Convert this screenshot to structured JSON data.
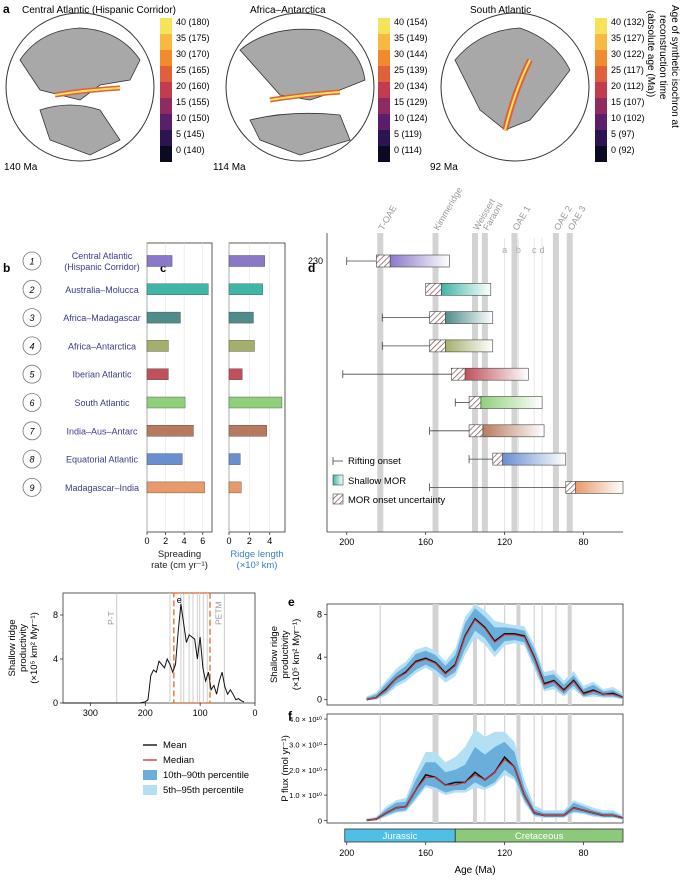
{
  "panel_letters": {
    "a": "a",
    "b": "b",
    "c": "c",
    "d": "d",
    "e": "e",
    "f": "f"
  },
  "panel_a": {
    "globes": [
      {
        "title": "Central Atlantic (Hispanic Corridor)",
        "age": "140 Ma",
        "scale": [
          "40 (180)",
          "35 (175)",
          "30 (170)",
          "25 (165)",
          "20 (160)",
          "15 (155)",
          "10 (150)",
          "5 (145)",
          "0 (140)"
        ]
      },
      {
        "title": "Africa–Antarctica",
        "age": "114 Ma",
        "scale": [
          "40 (154)",
          "35 (149)",
          "30 (144)",
          "25 (139)",
          "20 (134)",
          "15 (129)",
          "10 (124)",
          "5 (119)",
          "0 (114)"
        ]
      },
      {
        "title": "South Atlantic",
        "age": "92 Ma",
        "scale": [
          "40 (132)",
          "35 (127)",
          "30 (122)",
          "25 (117)",
          "20 (112)",
          "15 (107)",
          "10 (102)",
          "5 (97)",
          "0 (92)"
        ]
      }
    ],
    "colorbar_label": [
      "Age of synthetic isochron at",
      "reconstruction time",
      "(absolute age (Ma))"
    ],
    "colorbar_colors": [
      "#f5e35a",
      "#f7b93f",
      "#f28a2e",
      "#e0603a",
      "#c33b4f",
      "#8f2a63",
      "#5a1f6b",
      "#2c1450",
      "#0c0a22"
    ]
  },
  "ridges": {
    "numbers": [
      "1",
      "2",
      "3",
      "4",
      "5",
      "6",
      "7",
      "8",
      "9"
    ],
    "names": [
      "Central Atlantic\n(Hispanic Corridor)",
      "Australia–Molucca",
      "Africa–Madagascar",
      "Africa–Antarctica",
      "Iberian Atlantic",
      "South Atlantic",
      "India–Aus–Antarc",
      "Equatorial Atlantic",
      "Madagascar–India"
    ],
    "colors": [
      "#8b78c8",
      "#3fb6a8",
      "#4f8c8c",
      "#a4b06a",
      "#c0505a",
      "#8fd07a",
      "#b87a5e",
      "#6a8fd0",
      "#e89a6a"
    ]
  },
  "chart_data": [
    {
      "panel": "b",
      "type": "bar",
      "categories": [
        "Central Atlantic (Hispanic Corridor)",
        "Australia–Molucca",
        "Africa–Madagascar",
        "Africa–Antarctica",
        "Iberian Atlantic",
        "South Atlantic",
        "India–Aus–Antarc",
        "Equatorial Atlantic",
        "Madagascar–India"
      ],
      "values": [
        2.7,
        6.6,
        3.6,
        2.3,
        2.3,
        4.1,
        5.0,
        3.8,
        6.2
      ],
      "xlabel": "Spreading\nrate (cm yr⁻¹)",
      "xticks": [
        "0",
        "2",
        "4",
        "6"
      ],
      "xlim": [
        0,
        7
      ]
    },
    {
      "panel": "c",
      "type": "bar",
      "categories": [
        "Central Atlantic (Hispanic Corridor)",
        "Australia–Molucca",
        "Africa–Madagascar",
        "Africa–Antarctica",
        "Iberian Atlantic",
        "South Atlantic",
        "India–Aus–Antarc",
        "Equatorial Atlantic",
        "Madagascar–India"
      ],
      "values": [
        3.5,
        3.3,
        2.4,
        2.5,
        1.3,
        5.2,
        3.7,
        1.1,
        1.2
      ],
      "xlabel": "Ridge length\n(×10³ km)",
      "xticks": [
        "0",
        "2",
        "4"
      ],
      "xlim": [
        0,
        5.5
      ]
    },
    {
      "panel": "d",
      "type": "timeline",
      "xlim": [
        210,
        60
      ],
      "xticks": [
        "200",
        "160",
        "120",
        "80"
      ],
      "xlabel": "",
      "yticks": [
        "230"
      ],
      "events": [
        {
          "name": "T-OAE",
          "age": 183
        },
        {
          "name": "Kimmeridge",
          "age": 155
        },
        {
          "name": "Weissert",
          "age": 135
        },
        {
          "name": "Faraoni",
          "age": 130
        },
        {
          "name": "OAE 1",
          "age": 115
        },
        {
          "name": "OAE 2",
          "age": 94
        },
        {
          "name": "OAE 3",
          "age": 87
        }
      ],
      "oae1_sub": [
        "a",
        "b",
        "c",
        "d"
      ],
      "oae1_sub_ages": [
        120,
        113,
        105,
        101
      ],
      "rows": [
        {
          "rifting": 200,
          "mor_unc": [
            185,
            178
          ],
          "shallow": [
            178,
            148
          ]
        },
        {
          "rifting": null,
          "mor_unc": [
            160,
            152
          ],
          "shallow": [
            152,
            127
          ]
        },
        {
          "rifting": 182,
          "mor_unc": [
            158,
            150
          ],
          "shallow": [
            150,
            126
          ]
        },
        {
          "rifting": 182,
          "mor_unc": [
            158,
            150
          ],
          "shallow": [
            150,
            126
          ]
        },
        {
          "rifting": 202,
          "mor_unc": [
            147,
            140
          ],
          "shallow": [
            140,
            108
          ]
        },
        {
          "rifting": 145,
          "mor_unc": [
            138,
            132
          ],
          "shallow": [
            132,
            101
          ]
        },
        {
          "rifting": 158,
          "mor_unc": [
            138,
            131
          ],
          "shallow": [
            131,
            100
          ]
        },
        {
          "rifting": 138,
          "mor_unc": [
            126,
            121
          ],
          "shallow": [
            121,
            89
          ]
        },
        {
          "rifting": 158,
          "mor_unc": [
            89,
            84
          ],
          "shallow": [
            84,
            60
          ]
        }
      ],
      "legend": [
        "Rifting onset",
        "Shallow MOR",
        "MOR onset uncertainty"
      ]
    },
    {
      "panel": "inset",
      "type": "line",
      "xlim": [
        350,
        0
      ],
      "ylim": [
        0,
        10
      ],
      "xticks": [
        "300",
        "200",
        "100",
        "0"
      ],
      "yticks": [
        "0",
        "4",
        "8"
      ],
      "ylabel": "Shallow ridge\nproductivity\n(×10⁵ km² Myr⁻¹)",
      "event_labels": [
        "P-T",
        "PETM"
      ],
      "event_ages": [
        252,
        56
      ],
      "box_label": "e",
      "box_range": [
        148,
        82
      ],
      "x": [
        350,
        300,
        250,
        210,
        200,
        195,
        190,
        185,
        180,
        175,
        170,
        165,
        160,
        155,
        150,
        145,
        140,
        135,
        130,
        125,
        120,
        115,
        110,
        105,
        100,
        95,
        90,
        85,
        80,
        75,
        70,
        65,
        60,
        55,
        50,
        45,
        40,
        35,
        30,
        25,
        20
      ],
      "y": [
        0,
        0,
        0,
        0,
        0.1,
        0.3,
        2.5,
        3.0,
        2.8,
        3.8,
        3.5,
        3.2,
        4.0,
        3.5,
        2.8,
        3.5,
        6.5,
        9.0,
        7.2,
        5.5,
        6.2,
        6.0,
        5.8,
        4.0,
        6.0,
        3.2,
        2.0,
        2.8,
        1.2,
        1.6,
        0.8,
        2.0,
        2.8,
        1.5,
        0.8,
        1.2,
        0.8,
        0.3,
        0.4,
        0.2,
        0.1
      ]
    },
    {
      "panel": "e",
      "type": "area",
      "xlim": [
        210,
        60
      ],
      "ylim": [
        -0.5,
        9
      ],
      "yticks": [
        "0",
        "4",
        "8"
      ],
      "ylabel": "Shallow ridge\nproductivity\n(×10⁵ km² Myr⁻¹)",
      "x": [
        190,
        185,
        180,
        175,
        170,
        165,
        160,
        155,
        150,
        145,
        140,
        135,
        130,
        125,
        120,
        115,
        110,
        105,
        100,
        95,
        90,
        85,
        80,
        75,
        70,
        65,
        60
      ],
      "mean": [
        0,
        0.2,
        1.0,
        2.0,
        2.6,
        3.6,
        3.9,
        3.5,
        2.5,
        3.3,
        6.0,
        7.6,
        6.8,
        5.5,
        6.2,
        6.2,
        6.0,
        4.0,
        1.5,
        1.8,
        0.9,
        1.8,
        0.6,
        0.9,
        0.5,
        0.6,
        0.2
      ],
      "median": [
        0,
        0.2,
        0.9,
        2.0,
        2.5,
        3.5,
        3.8,
        3.4,
        2.4,
        3.2,
        5.9,
        7.5,
        6.7,
        5.4,
        6.1,
        6.1,
        5.9,
        3.9,
        1.4,
        1.7,
        0.8,
        1.7,
        0.5,
        0.8,
        0.5,
        0.5,
        0.2
      ],
      "p10": [
        0,
        0.1,
        0.6,
        1.5,
        2.0,
        2.8,
        3.3,
        2.8,
        2.0,
        2.6,
        4.8,
        6.5,
        5.8,
        4.5,
        5.5,
        5.6,
        5.4,
        3.3,
        1.0,
        1.3,
        0.5,
        1.3,
        0.3,
        0.5,
        0.3,
        0.3,
        0.1
      ],
      "p90": [
        0.2,
        0.5,
        1.5,
        2.5,
        3.2,
        4.3,
        4.6,
        4.2,
        3.2,
        4.2,
        7.2,
        8.6,
        7.8,
        6.8,
        6.8,
        6.7,
        6.5,
        4.8,
        2.2,
        2.4,
        1.4,
        2.3,
        1.0,
        1.4,
        0.8,
        0.9,
        0.4
      ],
      "p5": [
        0,
        0.0,
        0.4,
        1.2,
        1.7,
        2.5,
        3.0,
        2.5,
        1.6,
        2.2,
        4.2,
        5.9,
        5.2,
        4.0,
        5.1,
        5.3,
        5.1,
        2.9,
        0.8,
        1.0,
        0.3,
        1.0,
        0.2,
        0.3,
        0.2,
        0.2,
        0.0
      ],
      "p95": [
        0.3,
        0.7,
        1.8,
        2.9,
        3.6,
        4.7,
        5.0,
        4.6,
        3.6,
        4.8,
        7.8,
        9.0,
        8.4,
        7.4,
        7.2,
        7.0,
        6.9,
        5.2,
        2.6,
        2.8,
        1.8,
        2.7,
        1.3,
        1.7,
        1.0,
        1.2,
        0.6
      ]
    },
    {
      "panel": "f",
      "type": "area",
      "xlim": [
        210,
        60
      ],
      "ylim": [
        -0.1,
        4.2
      ],
      "yticks": [
        "0",
        "1.0 × 10¹⁰",
        "2.0 × 10¹⁰",
        "3.0 × 10¹⁰",
        "4.0 × 10¹⁰"
      ],
      "ylabel": "P flux (mol yr⁻¹)",
      "xticks": [
        "200",
        "160",
        "120",
        "80"
      ],
      "xlabel": "Age (Ma)",
      "x": [
        190,
        185,
        180,
        175,
        170,
        165,
        160,
        155,
        150,
        145,
        140,
        135,
        130,
        125,
        120,
        115,
        110,
        105,
        100,
        95,
        90,
        85,
        80,
        75,
        70,
        65,
        60
      ],
      "mean": [
        0,
        0.05,
        0.3,
        0.5,
        0.55,
        1.2,
        1.8,
        1.7,
        1.4,
        1.5,
        1.5,
        1.9,
        1.6,
        1.9,
        2.5,
        2.1,
        1.0,
        0.3,
        0.2,
        0.2,
        0.2,
        0.5,
        0.4,
        0.3,
        0.2,
        0.2,
        0.1
      ],
      "median": [
        0,
        0.05,
        0.3,
        0.5,
        0.55,
        1.2,
        1.7,
        1.7,
        1.4,
        1.4,
        1.5,
        1.8,
        1.6,
        1.9,
        2.4,
        2.1,
        1.0,
        0.3,
        0.2,
        0.2,
        0.2,
        0.5,
        0.4,
        0.3,
        0.2,
        0.2,
        0.1
      ],
      "p10": [
        0,
        0.02,
        0.2,
        0.35,
        0.4,
        0.9,
        1.4,
        1.3,
        1.1,
        1.2,
        1.2,
        1.5,
        1.3,
        1.5,
        2.0,
        1.7,
        0.8,
        0.2,
        0.15,
        0.15,
        0.15,
        0.35,
        0.3,
        0.2,
        0.15,
        0.15,
        0.05
      ],
      "p90": [
        0.05,
        0.1,
        0.45,
        0.7,
        0.75,
        1.6,
        2.3,
        2.3,
        1.9,
        2.0,
        2.2,
        2.9,
        2.6,
        2.9,
        3.1,
        2.7,
        1.3,
        0.45,
        0.3,
        0.3,
        0.3,
        0.7,
        0.55,
        0.4,
        0.3,
        0.3,
        0.15
      ],
      "p5": [
        0,
        0.0,
        0.15,
        0.3,
        0.35,
        0.8,
        1.3,
        1.2,
        1.0,
        1.1,
        1.1,
        1.3,
        1.2,
        1.4,
        1.8,
        1.6,
        0.7,
        0.15,
        0.1,
        0.1,
        0.1,
        0.3,
        0.25,
        0.15,
        0.1,
        0.1,
        0.03
      ],
      "p95": [
        0.08,
        0.15,
        0.55,
        0.8,
        0.9,
        1.9,
        2.7,
        2.7,
        2.3,
        2.5,
        2.9,
        3.6,
        3.3,
        3.5,
        3.5,
        3.1,
        1.6,
        0.6,
        0.4,
        0.4,
        0.4,
        0.8,
        0.65,
        0.5,
        0.4,
        0.4,
        0.2
      ]
    }
  ],
  "legend_lines": {
    "mean": "Mean",
    "median": "Median",
    "p10_90": "10th–90th percentile",
    "p5_95": "5th–95th percentile"
  },
  "periods": [
    {
      "name": "Jurassic",
      "from": 201,
      "to": 145,
      "color": "#4fbfe6"
    },
    {
      "name": "Cretaceous",
      "from": 145,
      "to": 60,
      "color": "#8cc97a"
    }
  ],
  "colors": {
    "mean": "#111111",
    "median": "#d63a3a",
    "p10_90": "#6aaedc",
    "p5_95": "#b4e0f4",
    "event_band": "#d3d3d3",
    "box": "#e57f3f",
    "numcolor": "#3b3b8c"
  }
}
